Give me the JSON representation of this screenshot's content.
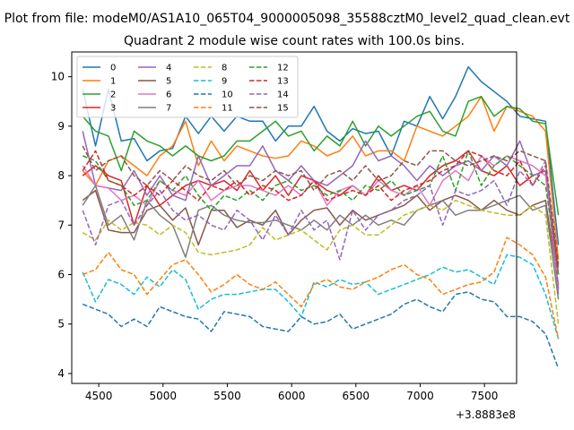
{
  "figure_title": "Plot from file: modeM0/AS1A10_065T04_9000005098_35588cztM0_level2_quad_clean.evt",
  "chart_data": {
    "type": "line",
    "title": "Quadrant 2 module wise count rates with 100.0s bins.",
    "xlabel": "",
    "ylabel": "",
    "x_offset_label": "+3.8883e8",
    "xlim": [
      4290,
      7750
    ],
    "ylim": [
      3.8,
      10.5
    ],
    "xticks": [
      4500,
      5000,
      5500,
      6000,
      6500,
      7000,
      7500
    ],
    "yticks": [
      4,
      5,
      6,
      7,
      8,
      9,
      10
    ],
    "x_start": 4375,
    "x_step": 100,
    "legend_position": "top-left",
    "legend_columns": 4,
    "series": [
      {
        "name": "0",
        "color": "#1f77b4",
        "dash": "solid",
        "values": [
          9.75,
          8.6,
          9.75,
          8.7,
          8.75,
          8.3,
          8.5,
          8.55,
          9.2,
          8.85,
          9.2,
          8.9,
          9.2,
          9.1,
          9.1,
          8.7,
          9.0,
          9.0,
          9.4,
          8.9,
          8.7,
          8.95,
          8.85,
          8.9,
          8.4,
          9.1,
          9.0,
          9.6,
          9.15,
          9.6,
          10.2,
          9.9,
          9.7,
          9.5,
          9.2,
          9.15,
          9.1,
          6.6
        ]
      },
      {
        "name": "1",
        "color": "#ff7f0e",
        "dash": "solid",
        "values": [
          8.1,
          7.8,
          8.3,
          8.4,
          8.2,
          8.0,
          8.4,
          8.6,
          9.1,
          8.2,
          8.7,
          8.3,
          8.6,
          8.5,
          8.4,
          8.35,
          8.4,
          8.7,
          8.6,
          8.4,
          8.5,
          8.8,
          8.4,
          8.5,
          8.5,
          8.3,
          9.0,
          8.9,
          8.8,
          9.0,
          9.2,
          9.6,
          8.9,
          9.4,
          9.3,
          9.2,
          8.9,
          6.3
        ]
      },
      {
        "name": "2",
        "color": "#2ca02c",
        "dash": "solid",
        "values": [
          9.2,
          8.9,
          8.8,
          8.1,
          8.9,
          8.7,
          8.6,
          8.4,
          8.6,
          8.4,
          8.3,
          8.4,
          8.7,
          8.7,
          8.9,
          9.1,
          8.8,
          8.9,
          8.5,
          8.8,
          8.6,
          9.1,
          8.6,
          9.0,
          8.8,
          9.0,
          9.2,
          9.3,
          8.9,
          8.8,
          9.5,
          9.6,
          9.2,
          9.4,
          9.35,
          9.1,
          9.05,
          7.2
        ]
      },
      {
        "name": "3",
        "color": "#d62728",
        "dash": "solid",
        "values": [
          8.0,
          8.2,
          8.0,
          7.9,
          7.0,
          7.8,
          7.4,
          7.6,
          7.8,
          7.9,
          7.8,
          7.9,
          7.7,
          8.1,
          7.7,
          8.0,
          7.6,
          8.0,
          7.9,
          7.7,
          7.6,
          7.8,
          7.6,
          8.0,
          7.7,
          7.8,
          7.7,
          8.0,
          8.2,
          8.3,
          8.5,
          8.1,
          8.0,
          8.2,
          7.8,
          8.0,
          8.1,
          6.0
        ]
      },
      {
        "name": "4",
        "color": "#9467bd",
        "dash": "solid",
        "values": [
          8.9,
          7.8,
          7.75,
          7.7,
          8.1,
          7.6,
          8.0,
          7.6,
          7.5,
          8.4,
          7.8,
          8.0,
          8.2,
          8.2,
          8.6,
          8.1,
          7.9,
          8.2,
          7.9,
          7.8,
          8.0,
          8.2,
          8.7,
          8.3,
          8.4,
          8.2,
          7.9,
          8.2,
          8.0,
          8.2,
          8.3,
          8.1,
          8.4,
          8.2,
          8.7,
          8.0,
          8.1,
          5.6
        ]
      },
      {
        "name": "5",
        "color": "#8c564b",
        "dash": "solid",
        "values": [
          7.5,
          7.7,
          6.9,
          6.85,
          6.85,
          7.3,
          7.4,
          7.1,
          7.35,
          6.6,
          7.3,
          7.3,
          6.95,
          7.1,
          7.0,
          7.3,
          6.8,
          7.1,
          7.3,
          7.35,
          7.0,
          7.3,
          7.1,
          7.2,
          7.3,
          7.4,
          7.6,
          7.3,
          7.5,
          7.6,
          7.5,
          7.3,
          7.5,
          7.3,
          7.2,
          7.4,
          7.5,
          5.8
        ]
      },
      {
        "name": "6",
        "color": "#e377c2",
        "dash": "solid",
        "values": [
          8.2,
          7.8,
          7.75,
          7.5,
          7.6,
          7.4,
          7.9,
          7.7,
          7.6,
          7.9,
          7.5,
          7.7,
          7.8,
          7.8,
          7.7,
          7.6,
          7.8,
          7.6,
          7.9,
          7.4,
          7.7,
          7.8,
          7.6,
          7.9,
          7.7,
          7.6,
          7.8,
          7.4,
          7.9,
          8.1,
          7.9,
          8.4,
          8.2,
          8.4,
          8.3,
          8.2,
          8.0,
          5.7
        ]
      },
      {
        "name": "7",
        "color": "#7f7f7f",
        "dash": "solid",
        "values": [
          7.4,
          7.8,
          7.0,
          7.2,
          6.7,
          7.5,
          7.2,
          7.0,
          6.35,
          7.3,
          7.4,
          7.2,
          7.1,
          7.05,
          7.05,
          7.1,
          7.0,
          6.9,
          7.1,
          6.9,
          7.2,
          7.0,
          7.2,
          7.0,
          7.1,
          7.0,
          7.3,
          7.4,
          7.5,
          7.2,
          7.3,
          7.3,
          7.4,
          7.5,
          7.6,
          7.3,
          7.4,
          5.5
        ]
      },
      {
        "name": "8",
        "color": "#bcbd22",
        "dash": "dashed",
        "values": [
          6.85,
          6.7,
          7.1,
          6.9,
          7.05,
          7.0,
          6.8,
          7.0,
          6.85,
          6.45,
          6.4,
          6.45,
          6.5,
          6.6,
          6.95,
          6.7,
          6.8,
          6.9,
          6.7,
          6.5,
          6.9,
          7.0,
          6.8,
          6.8,
          7.0,
          7.2,
          7.3,
          7.4,
          7.3,
          7.5,
          7.4,
          7.3,
          7.25,
          7.2,
          7.2,
          7.4,
          7.2,
          5.0
        ]
      },
      {
        "name": "9",
        "color": "#17becf",
        "dash": "dashed",
        "values": [
          6.05,
          5.45,
          5.9,
          5.8,
          5.6,
          5.95,
          5.75,
          6.1,
          5.9,
          5.3,
          5.5,
          5.6,
          5.6,
          5.65,
          5.7,
          5.7,
          5.45,
          5.15,
          5.85,
          5.75,
          5.9,
          5.8,
          5.85,
          5.6,
          5.7,
          5.8,
          5.9,
          6.0,
          6.15,
          6.05,
          6.1,
          5.95,
          5.8,
          6.4,
          6.35,
          6.2,
          5.6,
          4.7
        ]
      },
      {
        "name": "10",
        "color": "#1f77b4",
        "dash": "dashed",
        "values": [
          5.4,
          5.3,
          5.2,
          4.95,
          5.1,
          4.95,
          5.35,
          5.25,
          5.15,
          5.1,
          4.85,
          5.25,
          5.2,
          5.15,
          4.95,
          4.9,
          4.85,
          5.15,
          5.0,
          5.05,
          5.2,
          4.9,
          5.0,
          5.1,
          5.2,
          5.4,
          5.5,
          5.35,
          5.25,
          5.6,
          5.65,
          5.5,
          5.45,
          5.15,
          5.15,
          5.05,
          4.8,
          4.1
        ]
      },
      {
        "name": "11",
        "color": "#ff7f0e",
        "dash": "dashed",
        "values": [
          6.0,
          6.1,
          6.45,
          6.1,
          6.0,
          5.6,
          5.9,
          6.2,
          6.3,
          6.0,
          5.65,
          5.8,
          6.0,
          5.8,
          5.7,
          5.85,
          5.6,
          5.35,
          5.8,
          5.9,
          5.75,
          5.7,
          5.85,
          5.95,
          6.1,
          6.2,
          6.0,
          5.9,
          5.6,
          5.7,
          5.8,
          5.85,
          6.05,
          6.75,
          6.6,
          6.4,
          5.95,
          4.7
        ]
      },
      {
        "name": "12",
        "color": "#2ca02c",
        "dash": "dashed",
        "values": [
          8.4,
          8.3,
          7.9,
          7.8,
          7.4,
          7.5,
          7.9,
          7.7,
          8.0,
          7.6,
          7.3,
          7.6,
          7.5,
          7.7,
          7.5,
          7.8,
          7.9,
          7.7,
          7.8,
          7.6,
          7.7,
          7.5,
          7.8,
          7.7,
          7.9,
          7.6,
          7.7,
          7.8,
          8.4,
          7.7,
          8.5,
          7.8,
          8.2,
          8.4,
          8.2,
          8.0,
          7.8,
          6.0
        ]
      },
      {
        "name": "13",
        "color": "#d62728",
        "dash": "dashed",
        "values": [
          8.1,
          8.5,
          7.9,
          7.8,
          7.6,
          7.8,
          7.6,
          7.9,
          7.7,
          7.5,
          7.8,
          7.7,
          7.9,
          7.6,
          7.8,
          7.7,
          7.5,
          7.6,
          7.9,
          7.5,
          7.6,
          7.7,
          7.6,
          7.8,
          7.5,
          7.7,
          7.8,
          7.9,
          8.1,
          8.2,
          8.5,
          8.4,
          8.1,
          8.0,
          8.3,
          7.8,
          8.2,
          6.1
        ]
      },
      {
        "name": "14",
        "color": "#9467bd",
        "dash": "dashed",
        "values": [
          7.3,
          6.6,
          7.4,
          7.5,
          7.0,
          7.4,
          7.7,
          7.3,
          7.1,
          7.2,
          7.0,
          6.9,
          7.3,
          7.1,
          6.7,
          7.2,
          6.8,
          7.3,
          6.9,
          7.1,
          6.3,
          7.3,
          6.9,
          7.2,
          7.3,
          7.5,
          7.6,
          7.8,
          7.0,
          7.7,
          7.6,
          7.7,
          7.9,
          7.4,
          8.1,
          7.8,
          8.3,
          5.7
        ]
      },
      {
        "name": "15",
        "color": "#8c564b",
        "dash": "dashed",
        "values": [
          8.6,
          8.1,
          8.3,
          8.4,
          8.0,
          7.8,
          8.1,
          7.9,
          8.2,
          8.0,
          7.9,
          8.1,
          7.8,
          8.0,
          7.9,
          8.1,
          8.0,
          8.1,
          7.7,
          8.0,
          8.1,
          7.9,
          8.2,
          7.9,
          8.0,
          8.3,
          8.2,
          8.5,
          8.5,
          8.3,
          8.2,
          8.3,
          8.4,
          8.3,
          8.5,
          8.4,
          8.3,
          6.2
        ]
      }
    ]
  }
}
